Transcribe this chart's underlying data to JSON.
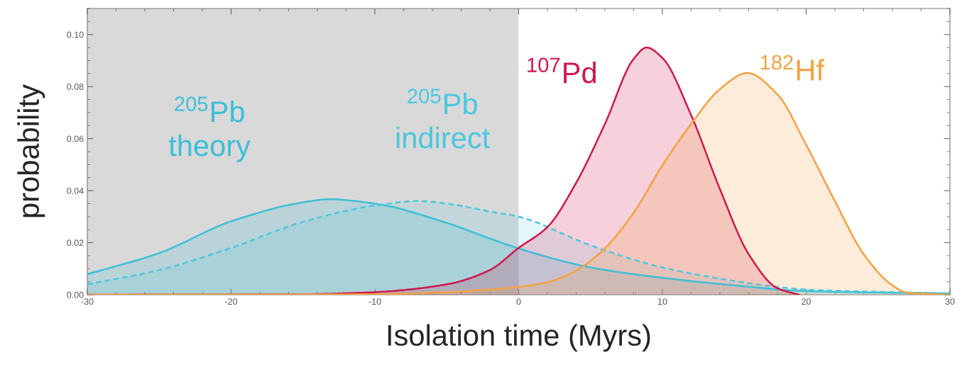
{
  "chart_data": {
    "type": "area",
    "xlabel": "Isolation time (Myrs)",
    "ylabel": "probability",
    "xlim": [
      -30,
      30
    ],
    "xticks": [
      -30,
      -20,
      -10,
      0,
      10,
      20,
      30
    ],
    "ylim": [
      0,
      0.11
    ],
    "yticks": [
      {
        "value": 0.0,
        "label": "0.00"
      },
      {
        "value": 0.02,
        "label": "0.02"
      },
      {
        "value": 0.04,
        "label": "0.04"
      },
      {
        "value": 0.06,
        "label": "0.06"
      },
      {
        "value": 0.08,
        "label": "0.08"
      },
      {
        "value": 0.1,
        "label": "0.10"
      }
    ],
    "grid": false,
    "legend": false,
    "bands": [
      {
        "axis": "x",
        "from": -30,
        "to": 0,
        "color": "#d9d9d9"
      }
    ],
    "series": [
      {
        "name": "$^{205}$Pb\ntheory",
        "color": "#3cbfd8",
        "line_style": "solid",
        "x": [
          -30,
          -25,
          -20,
          -15,
          -13.2,
          -10,
          -5,
          -2,
          0,
          5,
          10,
          15,
          20,
          30
        ],
        "values": [
          0.0079,
          0.016,
          0.0282,
          0.0355,
          0.0367,
          0.035,
          0.0276,
          0.0216,
          0.0178,
          0.0105,
          0.0065,
          0.0036,
          0.0014,
          0.0005
        ]
      },
      {
        "name": "$^{205}$Pb\nindirect",
        "color": "#48c8e0",
        "line_style": "dashed",
        "x": [
          -30,
          -25,
          -20,
          -15,
          -10,
          -7,
          -5,
          -2,
          0,
          5,
          10,
          15,
          18,
          20,
          30
        ],
        "values": [
          0.004,
          0.0095,
          0.018,
          0.028,
          0.0343,
          0.036,
          0.035,
          0.032,
          0.03,
          0.019,
          0.0105,
          0.0053,
          0.003,
          0.002,
          0.0005
        ]
      },
      {
        "name": "$^{107}$Pd",
        "color": "#d0174a",
        "line_style": "solid",
        "x": [
          -30,
          -15,
          -10,
          -5,
          -2,
          0,
          2,
          4,
          6,
          8,
          8.9,
          10,
          12,
          14,
          16,
          18,
          19.5
        ],
        "values": [
          0.0,
          0.0002,
          0.001,
          0.004,
          0.0095,
          0.018,
          0.026,
          0.043,
          0.0656,
          0.0906,
          0.095,
          0.091,
          0.069,
          0.0406,
          0.0156,
          0.0025,
          0.0
        ]
      },
      {
        "name": "$^{182}$Hf",
        "color": "#f7a040",
        "line_style": "solid",
        "x": [
          -30,
          -10,
          -5,
          -2,
          0,
          2,
          4,
          6,
          8,
          10,
          12,
          14,
          15.9,
          18,
          20,
          22,
          24,
          26,
          27,
          30
        ],
        "values": [
          0.0,
          0.0002,
          0.001,
          0.002,
          0.003,
          0.0048,
          0.0093,
          0.0178,
          0.0315,
          0.0497,
          0.0656,
          0.079,
          0.0852,
          0.077,
          0.0576,
          0.036,
          0.0156,
          0.0036,
          0.0008,
          0.0
        ]
      }
    ]
  }
}
